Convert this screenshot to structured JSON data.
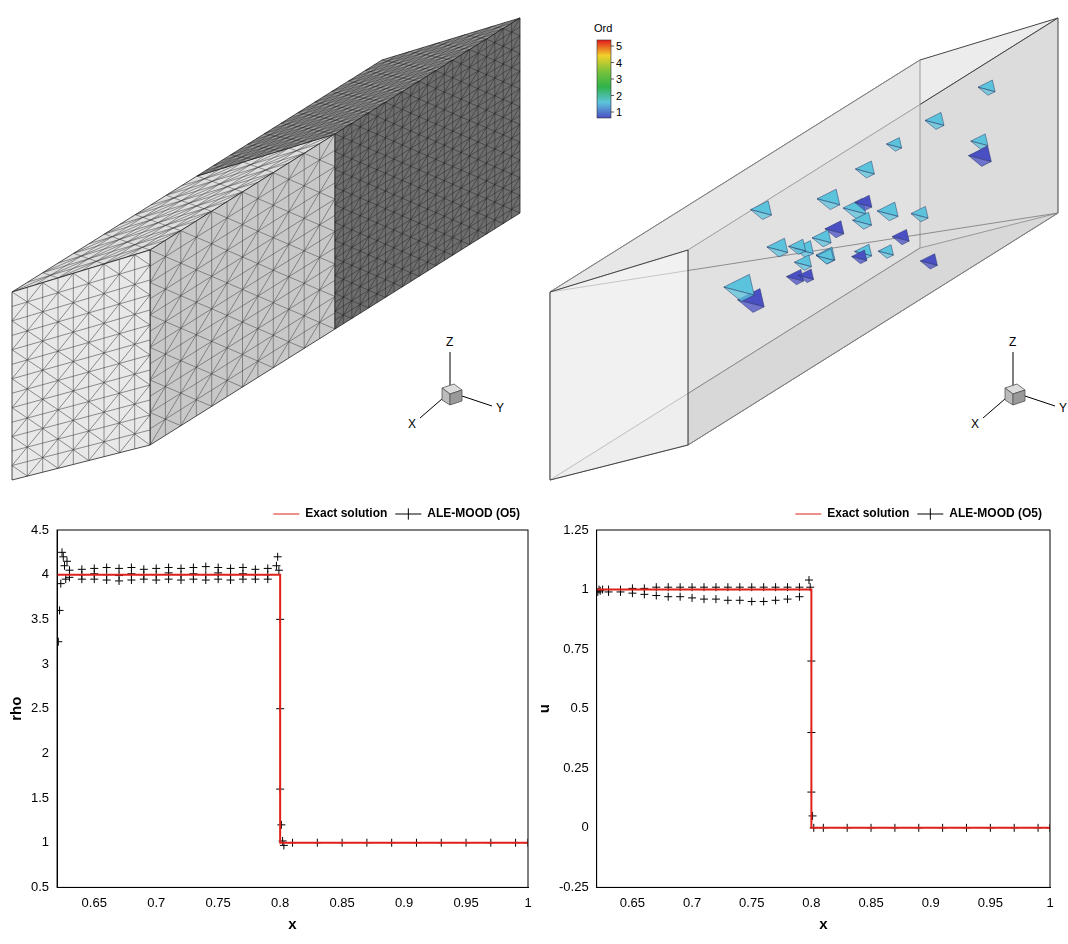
{
  "chart_data": [
    {
      "type": "scatter",
      "x_label": "x",
      "y_label": "rho",
      "xlim": [
        0.62,
        1
      ],
      "xticks": [
        0.65,
        0.7,
        0.75,
        0.8,
        0.85,
        0.9,
        0.95,
        1
      ],
      "ylim": [
        0.5,
        4.5
      ],
      "yticks": [
        0.5,
        1,
        1.5,
        2,
        2.5,
        3,
        3.5,
        4,
        4.5
      ],
      "grid": false,
      "legend": "top right",
      "series": [
        {
          "name": "ALE-MOOD (O5)",
          "color": "#000000",
          "marker": "cross",
          "x": [
            0.621,
            0.622,
            0.623,
            0.624,
            0.625,
            0.626,
            0.627,
            0.628,
            0.63,
            0.63,
            0.64,
            0.64,
            0.64,
            0.65,
            0.65,
            0.65,
            0.66,
            0.66,
            0.66,
            0.67,
            0.67,
            0.67,
            0.68,
            0.68,
            0.68,
            0.69,
            0.69,
            0.69,
            0.7,
            0.7,
            0.7,
            0.71,
            0.71,
            0.71,
            0.72,
            0.72,
            0.72,
            0.73,
            0.73,
            0.73,
            0.74,
            0.74,
            0.74,
            0.75,
            0.75,
            0.75,
            0.76,
            0.76,
            0.76,
            0.77,
            0.77,
            0.77,
            0.78,
            0.78,
            0.78,
            0.79,
            0.79,
            0.79,
            0.797,
            0.798,
            0.799,
            0.8,
            0.8,
            0.8,
            0.801,
            0.802,
            0.803,
            0.81,
            0.83,
            0.85,
            0.87,
            0.89,
            0.91,
            0.93,
            0.95,
            0.97,
            0.99,
            1
          ],
          "values": [
            3.25,
            3.6,
            3.9,
            4.25,
            4.2,
            4.1,
            3.95,
            4.15,
            4.05,
            3.97,
            4.06,
            4,
            3.95,
            4.07,
            4.01,
            3.95,
            4.08,
            4,
            3.94,
            4.07,
            3.99,
            3.93,
            4.08,
            4.01,
            3.94,
            4.06,
            4,
            3.95,
            4.07,
            4,
            3.94,
            4.08,
            4.02,
            3.95,
            4.07,
            4,
            3.94,
            4.08,
            4.01,
            3.95,
            4.09,
            4,
            3.94,
            4.08,
            4.02,
            3.95,
            4.07,
            4,
            3.94,
            4.08,
            4.01,
            3.95,
            4.06,
            4,
            3.95,
            4.07,
            4,
            3.95,
            4.1,
            4.2,
            4.05,
            3.5,
            2.5,
            1.6,
            1.2,
            1.02,
            0.97,
            1,
            1,
            1,
            1,
            1,
            1,
            1,
            1,
            1,
            1,
            1
          ]
        },
        {
          "name": "Exact solution",
          "color": "#e0201b",
          "line_style": "solid",
          "x": [
            0.62,
            0.8,
            0.8,
            1
          ],
          "values": [
            4,
            4,
            1,
            1
          ]
        }
      ]
    },
    {
      "type": "scatter",
      "x_label": "x",
      "y_label": "u",
      "xlim": [
        0.62,
        1
      ],
      "xticks": [
        0.65,
        0.7,
        0.75,
        0.8,
        0.85,
        0.9,
        0.95,
        1
      ],
      "ylim": [
        -0.25,
        1.25
      ],
      "yticks": [
        -0.25,
        0,
        0.25,
        0.5,
        0.75,
        1,
        1.25
      ],
      "grid": false,
      "legend": "top right",
      "series": [
        {
          "name": "ALE-MOOD (O5)",
          "color": "#000000",
          "marker": "cross",
          "x": [
            0.621,
            0.622,
            0.623,
            0.625,
            0.63,
            0.63,
            0.64,
            0.64,
            0.65,
            0.65,
            0.66,
            0.66,
            0.67,
            0.67,
            0.68,
            0.68,
            0.69,
            0.69,
            0.7,
            0.7,
            0.71,
            0.71,
            0.72,
            0.72,
            0.73,
            0.73,
            0.74,
            0.74,
            0.75,
            0.75,
            0.76,
            0.76,
            0.77,
            0.77,
            0.78,
            0.78,
            0.79,
            0.79,
            0.798,
            0.799,
            0.8,
            0.8,
            0.8,
            0.801,
            0.802,
            0.81,
            0.83,
            0.85,
            0.87,
            0.89,
            0.91,
            0.93,
            0.95,
            0.97,
            0.99,
            1
          ],
          "values": [
            0.99,
            1,
            0.995,
            1,
            1,
            0.99,
            1,
            0.99,
            1.005,
            0.985,
            1.005,
            0.98,
            1.01,
            0.975,
            1.01,
            0.97,
            1.01,
            0.97,
            1.01,
            0.965,
            1.01,
            0.96,
            1.01,
            0.96,
            1.01,
            0.955,
            1.01,
            0.955,
            1.01,
            0.95,
            1.01,
            0.95,
            1.01,
            0.955,
            1.01,
            0.96,
            1.01,
            0.97,
            1.04,
            1.01,
            0.7,
            0.4,
            0.15,
            0.05,
            0,
            0,
            0,
            0,
            0,
            0,
            0,
            0,
            0,
            0,
            0,
            0
          ]
        },
        {
          "name": "Exact solution",
          "color": "#e0201b",
          "line_style": "solid",
          "x": [
            0.62,
            0.8,
            0.8,
            1
          ],
          "values": [
            1,
            1,
            0,
            0
          ]
        }
      ]
    }
  ],
  "mesh_view": {
    "axis_labels": [
      "X",
      "Y",
      "Z"
    ]
  },
  "order_view": {
    "color_bar": {
      "title": "Ord",
      "range": [
        1,
        5
      ],
      "ticks": [
        5,
        4,
        3,
        2,
        1
      ],
      "colors": [
        "#e41a1c",
        "#f2d129",
        "#7bc23a",
        "#2fb34a",
        "#5cc3dc",
        "#4b4fc4"
      ]
    },
    "axis_labels": [
      "X",
      "Y",
      "Z"
    ]
  }
}
